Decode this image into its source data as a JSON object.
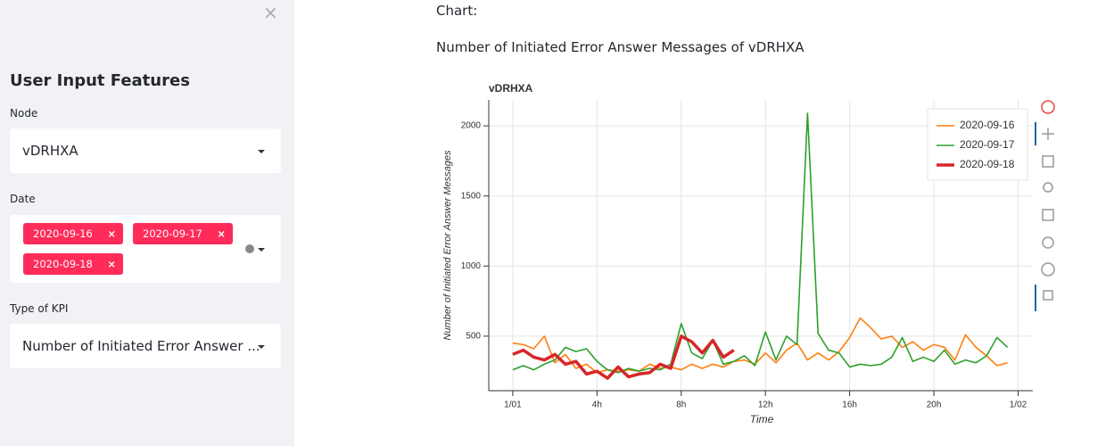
{
  "sidebar": {
    "title": "User Input Features",
    "node_label": "Node",
    "node_value": "vDRHXA",
    "date_label": "Date",
    "dates": [
      "2020-09-16",
      "2020-09-17",
      "2020-09-18"
    ],
    "kpi_label": "Type of KPI",
    "kpi_value": "Number of Initiated Error Answer ..."
  },
  "main": {
    "heading": "Chart:",
    "chart_heading": "Number of Initiated Error Answer Messages of vDRHXA"
  },
  "chart_data": {
    "type": "line",
    "title": "vDRHXA",
    "x_label": "Time",
    "y_label": "Number of Initiated Error Answer Messages",
    "xlim": [
      -1.14,
      24.7
    ],
    "ylim": [
      111,
      2185
    ],
    "xticks": [
      {
        "value": 0,
        "label": "1/01"
      },
      {
        "value": 4,
        "label": "4h"
      },
      {
        "value": 8,
        "label": "8h"
      },
      {
        "value": 12,
        "label": "12h"
      },
      {
        "value": 16,
        "label": "16h"
      },
      {
        "value": 20,
        "label": "20h"
      },
      {
        "value": 24,
        "label": "1/02"
      }
    ],
    "yticks": [
      500,
      1000,
      1500,
      2000
    ],
    "grid": true,
    "legend": "top-right",
    "series": [
      {
        "name": "2020-09-16",
        "color": "#ff7f0e",
        "line_width": 1.6,
        "x": [
          0,
          0.5,
          1,
          1.5,
          2,
          2.5,
          3,
          3.5,
          4,
          4.5,
          5,
          5.5,
          6,
          6.5,
          7,
          7.5,
          8,
          8.5,
          9,
          9.5,
          10,
          10.5,
          11,
          11.5,
          12,
          12.5,
          13,
          13.5,
          14,
          14.5,
          15,
          15.5,
          16,
          16.5,
          17,
          17.5,
          18,
          18.5,
          19,
          19.5,
          20,
          20.5,
          21,
          21.5,
          22,
          22.5,
          23,
          23.5
        ],
        "values": [
          450,
          440,
          410,
          500,
          310,
          370,
          270,
          300,
          240,
          260,
          250,
          260,
          250,
          300,
          270,
          280,
          260,
          300,
          270,
          300,
          280,
          320,
          330,
          300,
          380,
          310,
          400,
          450,
          330,
          380,
          330,
          390,
          490,
          630,
          560,
          480,
          500,
          420,
          460,
          400,
          440,
          420,
          330,
          510,
          420,
          360,
          290,
          310
        ]
      },
      {
        "name": "2020-09-17",
        "color": "#2ca02c",
        "line_width": 1.6,
        "x": [
          0,
          0.5,
          1,
          1.5,
          2,
          2.5,
          3,
          3.5,
          4,
          4.5,
          5,
          5.5,
          6,
          6.5,
          7,
          7.5,
          8,
          8.5,
          9,
          9.5,
          10,
          10.5,
          11,
          11.5,
          12,
          12.5,
          13,
          13.5,
          14,
          14.5,
          15,
          15.5,
          16,
          16.5,
          17,
          17.5,
          18,
          18.5,
          19,
          19.5,
          20,
          20.5,
          21,
          21.5,
          22,
          22.5,
          23,
          23.5
        ],
        "values": [
          260,
          290,
          260,
          300,
          330,
          420,
          390,
          410,
          320,
          260,
          240,
          270,
          250,
          270,
          260,
          300,
          590,
          380,
          340,
          470,
          300,
          320,
          360,
          290,
          530,
          330,
          500,
          440,
          2090,
          520,
          400,
          380,
          280,
          300,
          290,
          300,
          350,
          490,
          320,
          350,
          320,
          400,
          300,
          330,
          310,
          360,
          490,
          420
        ]
      },
      {
        "name": "2020-09-18",
        "color": "#d62728",
        "line_width": 3.5,
        "x": [
          0,
          0.5,
          1,
          1.5,
          2,
          2.5,
          3,
          3.5,
          4,
          4.5,
          5,
          5.5,
          6,
          6.5,
          7,
          7.5,
          8,
          8.5,
          9,
          9.5,
          10,
          10.5
        ],
        "values": [
          370,
          400,
          350,
          330,
          370,
          300,
          320,
          230,
          250,
          200,
          280,
          210,
          230,
          240,
          300,
          270,
          500,
          460,
          380,
          470,
          350,
          400
        ]
      }
    ]
  }
}
